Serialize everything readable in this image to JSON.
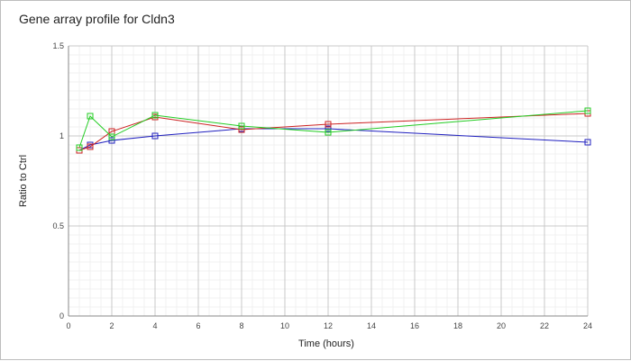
{
  "chart_data": {
    "type": "line",
    "title": "Gene array profile for Cldn3",
    "xlabel": "Time (hours)",
    "ylabel": "Ratio to Ctrl",
    "xlim": [
      0,
      24
    ],
    "ylim": [
      0,
      1.5
    ],
    "xticks": [
      0,
      2,
      4,
      6,
      8,
      10,
      12,
      14,
      16,
      18,
      20,
      22,
      24
    ],
    "yticks": [
      0,
      0.5,
      1,
      1.5
    ],
    "ytick_labels": [
      "0",
      "0.5",
      "1",
      "1.5"
    ],
    "grid": true,
    "series": [
      {
        "color": "#1f1fbf",
        "marker": "square",
        "x": [
          0.5,
          1,
          2,
          4,
          8,
          12,
          24
        ],
        "y": [
          0.92,
          0.95,
          0.975,
          1.0,
          1.04,
          1.04,
          0.965
        ]
      },
      {
        "color": "#cc2222",
        "marker": "square",
        "x": [
          0.5,
          1,
          2,
          4,
          8,
          12,
          24
        ],
        "y": [
          0.92,
          0.94,
          1.025,
          1.105,
          1.035,
          1.065,
          1.125
        ]
      },
      {
        "color": "#22cc22",
        "marker": "square",
        "x": [
          0.5,
          1,
          2,
          4,
          8,
          12,
          24
        ],
        "y": [
          0.935,
          1.11,
          0.995,
          1.115,
          1.055,
          1.02,
          1.14
        ]
      }
    ]
  }
}
